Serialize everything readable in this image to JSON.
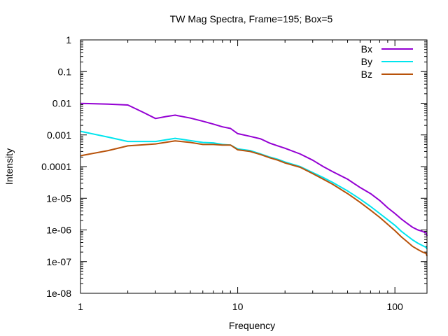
{
  "chart_data": {
    "type": "line",
    "title": "TW Mag Spectra, Frame=195; Box=5",
    "xlabel": "Frequency",
    "ylabel": "Intensity",
    "xscale": "log",
    "yscale": "log",
    "xlim": [
      1,
      160
    ],
    "ylim": [
      1e-08,
      1
    ],
    "xticks": [
      {
        "value": 1,
        "label": "1"
      },
      {
        "value": 10,
        "label": "10"
      },
      {
        "value": 100,
        "label": "100"
      }
    ],
    "yticks": [
      {
        "value": 1,
        "label": "1"
      },
      {
        "value": 0.1,
        "label": "0.1"
      },
      {
        "value": 0.01,
        "label": "0.01"
      },
      {
        "value": 0.001,
        "label": "0.001"
      },
      {
        "value": 0.0001,
        "label": "0.0001"
      },
      {
        "value": 1e-05,
        "label": "1e-05"
      },
      {
        "value": 1e-06,
        "label": "1e-06"
      },
      {
        "value": 1e-07,
        "label": "1e-07"
      },
      {
        "value": 1e-08,
        "label": "1e-08"
      }
    ],
    "grid": false,
    "legend_position": "top-right",
    "series": [
      {
        "name": "Bx",
        "color": "#9400d3",
        "points": [
          [
            1,
            0.0099
          ],
          [
            1.5,
            0.0094
          ],
          [
            2,
            0.0088
          ],
          [
            2.5,
            0.0052
          ],
          [
            3,
            0.0033
          ],
          [
            3.5,
            0.0038
          ],
          [
            4,
            0.0042
          ],
          [
            5,
            0.0034
          ],
          [
            6,
            0.0027
          ],
          [
            7,
            0.0022
          ],
          [
            8,
            0.0018
          ],
          [
            9,
            0.0016
          ],
          [
            10,
            0.0011
          ],
          [
            12,
            0.0009
          ],
          [
            14,
            0.00075
          ],
          [
            16,
            0.00055
          ],
          [
            18,
            0.00045
          ],
          [
            20,
            0.00038
          ],
          [
            25,
            0.00025
          ],
          [
            30,
            0.00016
          ],
          [
            35,
            0.0001
          ],
          [
            40,
            7e-05
          ],
          [
            50,
            4e-05
          ],
          [
            60,
            2.2e-05
          ],
          [
            70,
            1.4e-05
          ],
          [
            80,
            8.5e-06
          ],
          [
            90,
            5e-06
          ],
          [
            100,
            3.3e-06
          ],
          [
            110,
            2.2e-06
          ],
          [
            120,
            1.6e-06
          ],
          [
            130,
            1.2e-06
          ],
          [
            140,
            1e-06
          ],
          [
            150,
            9e-07
          ],
          [
            158,
            8e-07
          ],
          [
            160,
            6.5e-07
          ]
        ]
      },
      {
        "name": "By",
        "color": "#00e5ee",
        "points": [
          [
            1,
            0.0013
          ],
          [
            1.5,
            0.00085
          ],
          [
            2,
            0.00062
          ],
          [
            3,
            0.00062
          ],
          [
            4,
            0.00078
          ],
          [
            5,
            0.00066
          ],
          [
            6,
            0.00058
          ],
          [
            7,
            0.00056
          ],
          [
            8,
            0.0005
          ],
          [
            9,
            0.00048
          ],
          [
            10,
            0.00036
          ],
          [
            12,
            0.00032
          ],
          [
            14,
            0.00025
          ],
          [
            16,
            0.0002
          ],
          [
            18,
            0.00017
          ],
          [
            20,
            0.00014
          ],
          [
            25,
            0.0001
          ],
          [
            30,
            6.5e-05
          ],
          [
            35,
            4.5e-05
          ],
          [
            40,
            3.2e-05
          ],
          [
            50,
            1.7e-05
          ],
          [
            60,
            9.5e-06
          ],
          [
            70,
            5.5e-06
          ],
          [
            80,
            3.3e-06
          ],
          [
            90,
            2.1e-06
          ],
          [
            100,
            1.4e-06
          ],
          [
            110,
            9e-07
          ],
          [
            120,
            6.5e-07
          ],
          [
            130,
            4.8e-07
          ],
          [
            140,
            3.8e-07
          ],
          [
            150,
            3.2e-07
          ],
          [
            158,
            2.8e-07
          ],
          [
            160,
            2.5e-07
          ]
        ]
      },
      {
        "name": "Bz",
        "color": "#b8520a",
        "points": [
          [
            1,
            0.00022
          ],
          [
            1.5,
            0.00032
          ],
          [
            2,
            0.00045
          ],
          [
            3,
            0.00052
          ],
          [
            4,
            0.00065
          ],
          [
            5,
            0.00058
          ],
          [
            6,
            0.0005
          ],
          [
            7,
            0.0005
          ],
          [
            8,
            0.00048
          ],
          [
            9,
            0.00048
          ],
          [
            10,
            0.00034
          ],
          [
            12,
            0.0003
          ],
          [
            14,
            0.00024
          ],
          [
            16,
            0.00019
          ],
          [
            18,
            0.00016
          ],
          [
            20,
            0.00013
          ],
          [
            25,
            9.5e-05
          ],
          [
            30,
            6e-05
          ],
          [
            35,
            4e-05
          ],
          [
            40,
            2.8e-05
          ],
          [
            50,
            1.4e-05
          ],
          [
            60,
            7.5e-06
          ],
          [
            70,
            4.2e-06
          ],
          [
            80,
            2.5e-06
          ],
          [
            90,
            1.5e-06
          ],
          [
            100,
            9.5e-07
          ],
          [
            110,
            6e-07
          ],
          [
            120,
            4.2e-07
          ],
          [
            130,
            3e-07
          ],
          [
            140,
            2.4e-07
          ],
          [
            150,
            2e-07
          ],
          [
            158,
            1.8e-07
          ],
          [
            160,
            1.5e-07
          ]
        ]
      }
    ]
  }
}
